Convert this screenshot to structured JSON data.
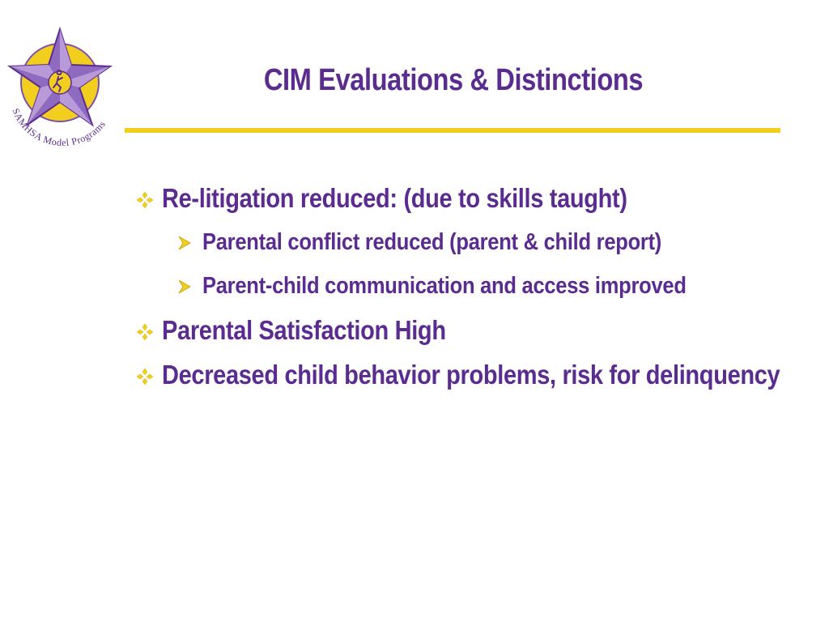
{
  "slide": {
    "title": "CIM Evaluations & Distinctions",
    "logo": {
      "caption": "SAMHSA Model Programs",
      "icon": "star-with-figure-icon"
    },
    "bullets": [
      {
        "level": 1,
        "text": "Re-litigation reduced:  (due to skills taught)"
      },
      {
        "level": 2,
        "text": "Parental conflict reduced (parent & child report)"
      },
      {
        "level": 2,
        "text": "Parent-child communication and access improved"
      },
      {
        "level": 1,
        "text": "Parental Satisfaction High"
      },
      {
        "level": 1,
        "text": "Decreased child behavior problems, risk for delinquency"
      }
    ]
  },
  "colors": {
    "text": "#5b2c8f",
    "accent": "#f2cf1e",
    "star": "#8f6bbf"
  }
}
